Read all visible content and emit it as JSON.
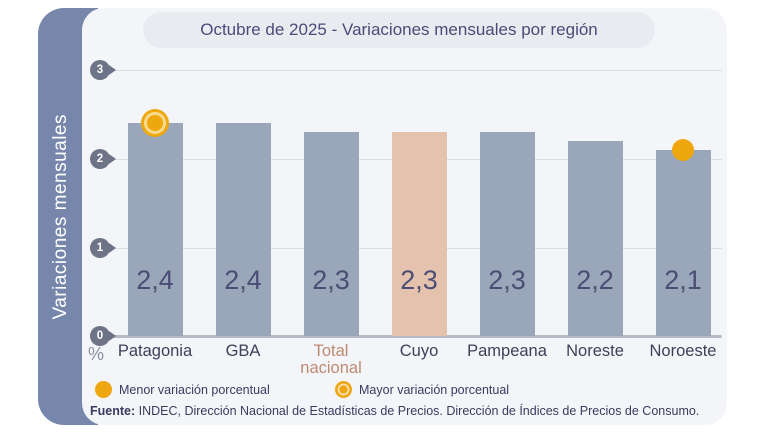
{
  "title": "Octubre de 2025 - Variaciones mensuales por región",
  "sidebar": {
    "label": "Variaciones mensuales"
  },
  "axis": {
    "unit": "%",
    "yticks": [
      "3",
      "2",
      "1",
      "0"
    ]
  },
  "chart_data": {
    "type": "bar",
    "title": "Octubre de 2025 - Variaciones mensuales por región",
    "ylabel": "Variaciones mensuales",
    "unit": "%",
    "ylim": [
      0,
      3
    ],
    "grid": true,
    "categories": [
      "Patagonia",
      "GBA",
      "Total nacional",
      "Cuyo",
      "Pampeana",
      "Noreste",
      "Noroeste"
    ],
    "values": [
      2.4,
      2.4,
      2.3,
      2.3,
      2.3,
      2.2,
      2.1
    ],
    "value_labels": [
      "2,4",
      "2,4",
      "2,3",
      "2,3",
      "2,3",
      "2,2",
      "2,1"
    ],
    "highlighted_bar": "Cuyo",
    "mayor_marker_on": "Patagonia",
    "menor_marker_on": "Noroeste",
    "legend_position": "bottom"
  },
  "legend": {
    "menor_label": "Menor variación porcentual",
    "mayor_label": "Mayor variación porcentual"
  },
  "footer": {
    "prefix": "Fuente:",
    "text": " INDEC, Dirección Nacional de Estadísticas de Precios. Dirección de Índices de Precios de Consumo."
  },
  "colors": {
    "bar": "#9aa6b9",
    "bar_highlight": "#e4c2ae",
    "accent_orange": "#efa70e",
    "sidebar_strip": "#7787ac",
    "card_background": "#f4f5f9",
    "title_text": "#4c4a78",
    "grid_line": "#dcdde3",
    "value_text": "#4a4e74",
    "total_nacional_label": "#bd8a70"
  }
}
